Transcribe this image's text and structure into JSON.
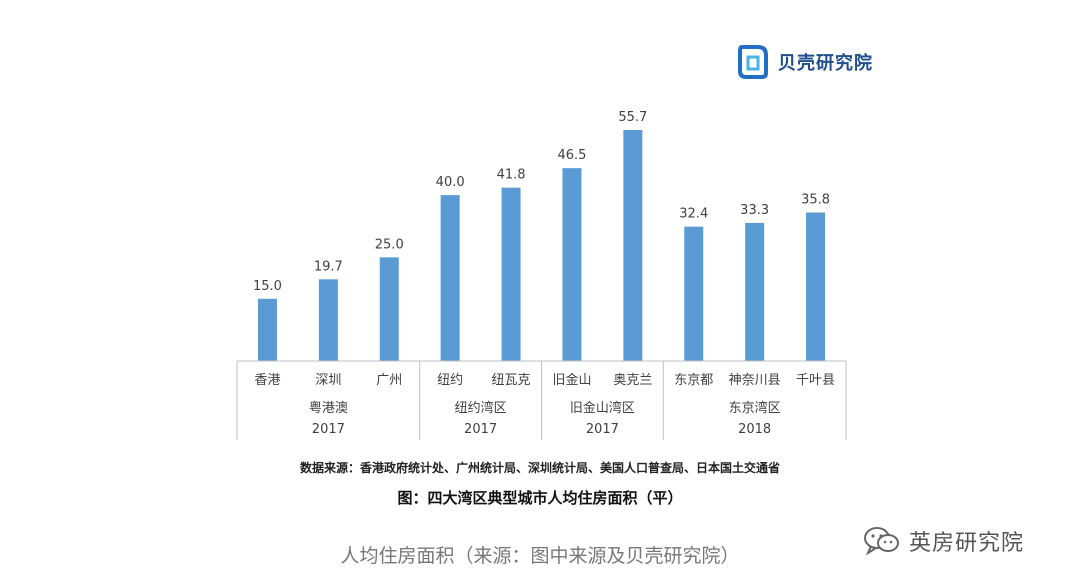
{
  "logo": {
    "text": "贝壳研究院",
    "icon": "beike-logo-icon"
  },
  "source_note": "数据来源：香港政府统计处、广州统计局、深圳统计局、美国人口普查局、日本国土交通省",
  "figure_title": "图：四大湾区典型城市人均住房面积（平）",
  "article_caption": "人均住房面积（来源：图中来源及贝壳研究院）",
  "watermark": {
    "text": "英房研究院",
    "icon": "wechat-icon"
  },
  "colors": {
    "bar": "#5b9bd5",
    "axis": "#bfbfbf",
    "label": "#404040"
  },
  "chart_data": {
    "type": "bar",
    "title": "图：四大湾区典型城市人均住房面积（平）",
    "categories": [
      "香港",
      "深圳",
      "广州",
      "纽约",
      "纽瓦克",
      "旧金山",
      "奥克兰",
      "东京都",
      "神奈川县",
      "千叶县"
    ],
    "values": [
      15.0,
      19.7,
      25.0,
      40.0,
      41.8,
      46.5,
      55.7,
      32.4,
      33.3,
      35.8
    ],
    "value_labels": [
      "15.0",
      "19.7",
      "25.0",
      "40.0",
      "41.8",
      "46.5",
      "55.7",
      "32.4",
      "33.3",
      "35.8"
    ],
    "groups": [
      {
        "name": "粤港澳",
        "year": "2017",
        "count": 3
      },
      {
        "name": "纽约湾区",
        "year": "2017",
        "count": 2
      },
      {
        "name": "旧金山湾区",
        "year": "2017",
        "count": 2
      },
      {
        "name": "东京湾区",
        "year": "2018",
        "count": 3
      }
    ],
    "ylim": [
      0,
      60
    ],
    "grid": false,
    "legend": "none",
    "xlabel": "",
    "ylabel": ""
  }
}
